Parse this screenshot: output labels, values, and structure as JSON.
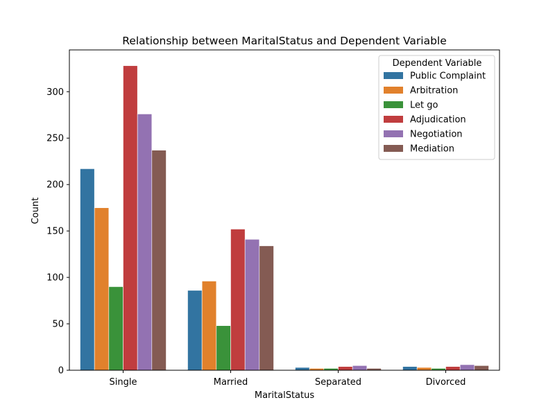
{
  "chart_data": {
    "type": "bar",
    "title": "Relationship between MaritalStatus and Dependent Variable",
    "xlabel": "MaritalStatus",
    "ylabel": "Count",
    "categories": [
      "Single",
      "Married",
      "Separated",
      "Divorced"
    ],
    "ylim": [
      0,
      345
    ],
    "yticks": [
      0,
      50,
      100,
      150,
      200,
      250,
      300
    ],
    "grid": false,
    "legend": {
      "title": "Dependent Variable",
      "placement": "top-right"
    },
    "series": [
      {
        "name": "Public Complaint",
        "color": "#3274a1",
        "values": [
          217,
          86,
          3,
          4
        ]
      },
      {
        "name": "Arbitration",
        "color": "#e1812c",
        "values": [
          175,
          96,
          2,
          3
        ]
      },
      {
        "name": "Let go",
        "color": "#3a923a",
        "values": [
          90,
          48,
          2,
          2
        ]
      },
      {
        "name": "Adjudication",
        "color": "#c03d3e",
        "values": [
          328,
          152,
          4,
          4
        ]
      },
      {
        "name": "Negotiation",
        "color": "#9372b2",
        "values": [
          276,
          141,
          5,
          6
        ]
      },
      {
        "name": "Mediation",
        "color": "#845b53",
        "values": [
          237,
          134,
          2,
          5
        ]
      }
    ]
  }
}
